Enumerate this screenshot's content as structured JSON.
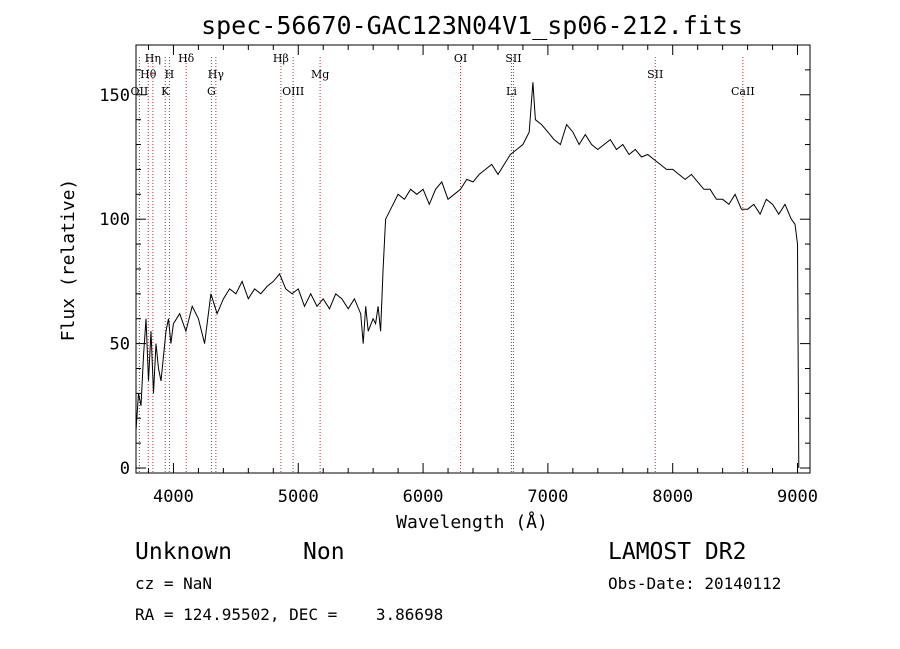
{
  "chart_data": {
    "type": "line",
    "title": "spec-56670-GAC123N04V1_sp06-212.fits",
    "xlabel": "Wavelength (Å)",
    "ylabel": "Flux (relative)",
    "xlim": [
      3700,
      9100
    ],
    "ylim": [
      -2,
      170
    ],
    "x_ticks": [
      4000,
      5000,
      6000,
      7000,
      8000,
      9000
    ],
    "y_ticks": [
      0,
      50,
      100,
      150
    ],
    "x_tick_labels": [
      "4000",
      "5000",
      "6000",
      "7000",
      "8000",
      "9000"
    ],
    "y_tick_labels": [
      "0",
      "50",
      "100",
      "150"
    ],
    "grid": false,
    "series": [
      {
        "x": [
          3700,
          3720,
          3740,
          3760,
          3780,
          3800,
          3820,
          3840,
          3860,
          3880,
          3900,
          3920,
          3940,
          3960,
          3980,
          4000,
          4050,
          4100,
          4150,
          4200,
          4250,
          4300,
          4350,
          4400,
          4450,
          4500,
          4550,
          4600,
          4650,
          4700,
          4750,
          4800,
          4850,
          4900,
          4950,
          5000,
          5050,
          5100,
          5150,
          5200,
          5250,
          5300,
          5350,
          5400,
          5450,
          5500,
          5520,
          5540,
          5560,
          5600,
          5620,
          5640,
          5660,
          5680,
          5700,
          5750,
          5800,
          5850,
          5900,
          5950,
          6000,
          6050,
          6100,
          6150,
          6200,
          6250,
          6300,
          6350,
          6400,
          6450,
          6500,
          6550,
          6600,
          6650,
          6700,
          6750,
          6800,
          6850,
          6880,
          6900,
          6950,
          7000,
          7050,
          7100,
          7150,
          7200,
          7250,
          7300,
          7350,
          7400,
          7450,
          7500,
          7550,
          7600,
          7650,
          7700,
          7750,
          7800,
          7850,
          7900,
          7950,
          8000,
          8050,
          8100,
          8150,
          8200,
          8250,
          8300,
          8350,
          8400,
          8450,
          8500,
          8550,
          8600,
          8650,
          8700,
          8750,
          8800,
          8850,
          8900,
          8950,
          8980,
          9000,
          9010
        ],
        "y": [
          15,
          30,
          25,
          45,
          60,
          35,
          55,
          30,
          50,
          40,
          35,
          45,
          55,
          60,
          50,
          58,
          62,
          55,
          65,
          60,
          50,
          70,
          62,
          68,
          72,
          70,
          75,
          68,
          72,
          70,
          73,
          75,
          78,
          72,
          70,
          72,
          65,
          70,
          65,
          68,
          64,
          70,
          68,
          64,
          68,
          62,
          50,
          65,
          55,
          60,
          58,
          65,
          55,
          80,
          100,
          105,
          110,
          108,
          112,
          110,
          112,
          106,
          112,
          115,
          108,
          110,
          112,
          116,
          115,
          118,
          120,
          122,
          118,
          122,
          126,
          128,
          130,
          135,
          155,
          140,
          138,
          135,
          132,
          130,
          138,
          135,
          130,
          134,
          130,
          128,
          130,
          132,
          128,
          130,
          126,
          128,
          125,
          126,
          124,
          122,
          120,
          120,
          118,
          116,
          118,
          115,
          112,
          112,
          108,
          108,
          106,
          110,
          104,
          104,
          106,
          102,
          108,
          106,
          102,
          106,
          100,
          98,
          90,
          0
        ]
      }
    ],
    "lines": [
      {
        "label": "Hθ",
        "x": 3798,
        "row": 2
      },
      {
        "label": "OII",
        "x": 3727,
        "row": 3
      },
      {
        "label": "Hη",
        "x": 3835,
        "row": 1
      },
      {
        "label": "H",
        "x": 3968,
        "row": 2
      },
      {
        "label": "K",
        "x": 3934,
        "row": 3
      },
      {
        "label": "Hδ",
        "x": 4102,
        "row": 1
      },
      {
        "label": "Hγ",
        "x": 4340,
        "row": 2
      },
      {
        "label": "G",
        "x": 4304,
        "row": 3
      },
      {
        "label": "Hβ",
        "x": 4861,
        "row": 1
      },
      {
        "label": "OIII",
        "x": 4959,
        "row": 3
      },
      {
        "label": "Mg",
        "x": 5175,
        "row": 2
      },
      {
        "label": "OI",
        "x": 6300,
        "row": 1
      },
      {
        "label": "SII",
        "x": 6724,
        "row": 1
      },
      {
        "label": "Li",
        "x": 6708,
        "row": 3
      },
      {
        "label": "SII",
        "x": 7860,
        "row": 2
      },
      {
        "label": "CaII",
        "x": 8562,
        "row": 3
      }
    ]
  },
  "footer": {
    "class_label": "Unknown",
    "subclass_label": "Non",
    "survey": "LAMOST DR2",
    "cz": "cz = NaN",
    "obs_date": "Obs-Date: 20140112",
    "radec": "RA = 124.95502, DEC =    3.86698"
  },
  "colors": {
    "line": "#000000",
    "marker": "#b03030"
  }
}
